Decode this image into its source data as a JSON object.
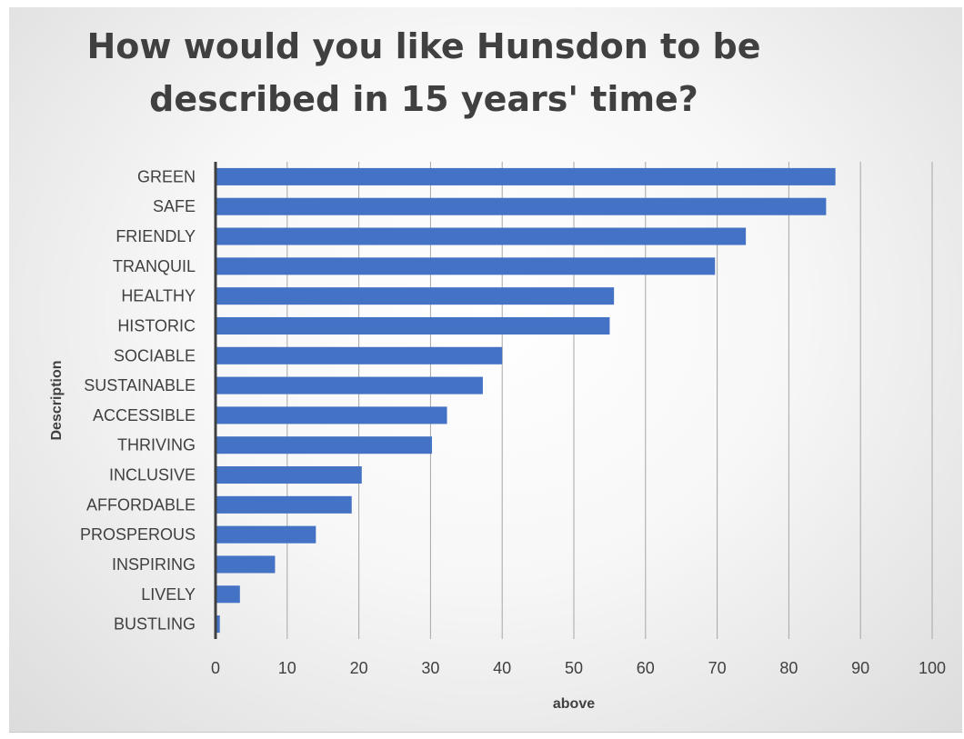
{
  "chart_data": {
    "type": "bar",
    "orientation": "horizontal",
    "title": "How would you like Hunsdon to be described in 15 years' time?",
    "xlabel": "above",
    "ylabel": "Description",
    "xlim": [
      0,
      100
    ],
    "xticks": [
      0,
      10,
      20,
      30,
      40,
      50,
      60,
      70,
      80,
      90,
      100
    ],
    "grid": true,
    "bar_color": "#4472c4",
    "categories": [
      "GREEN",
      "SAFE",
      "FRIENDLY",
      "TRANQUIL",
      "HEALTHY",
      "HISTORIC",
      "SOCIABLE",
      "SUSTAINABLE",
      "ACCESSIBLE",
      "THRIVING",
      "INCLUSIVE",
      "AFFORDABLE",
      "PROSPEROUS",
      "INSPIRING",
      "LIVELY",
      "BUSTLING"
    ],
    "values": [
      86.5,
      85.2,
      74,
      69.7,
      55.6,
      55,
      40,
      37.3,
      32.3,
      30.2,
      20.4,
      19,
      14,
      8.3,
      3.4,
      0.6
    ]
  }
}
